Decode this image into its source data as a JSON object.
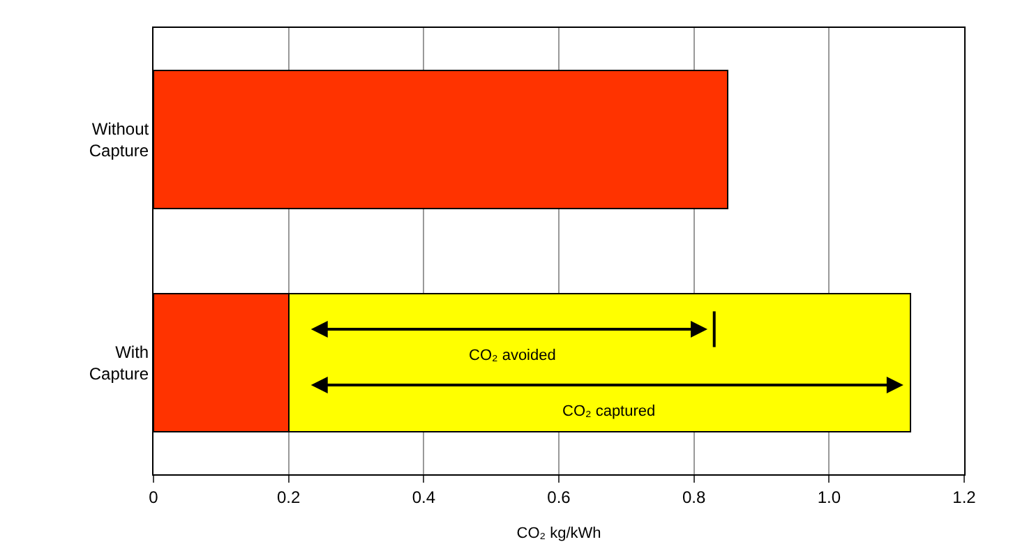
{
  "chart_data": {
    "type": "bar",
    "orientation": "horizontal",
    "stacked": true,
    "categories": [
      "Without\nCapture",
      "With\nCapture"
    ],
    "series": [
      {
        "color": "#ff3300",
        "values": [
          0.85,
          0.2
        ]
      },
      {
        "color": "#ffff00",
        "values": [
          null,
          0.92
        ]
      }
    ],
    "xlabel": "CO₂ kg/kWh",
    "xlim": [
      0,
      1.2
    ],
    "xticks": [
      0,
      0.2,
      0.4,
      0.6,
      0.8,
      {
        "value": 1.0,
        "label": "1.0"
      },
      1.2
    ],
    "grid": "x",
    "annotations": [
      "CO₂ avoided",
      "CO₂ captured"
    ],
    "ref_lines": [
      {
        "axis": "x",
        "value": 0.83,
        "label": null
      }
    ]
  }
}
